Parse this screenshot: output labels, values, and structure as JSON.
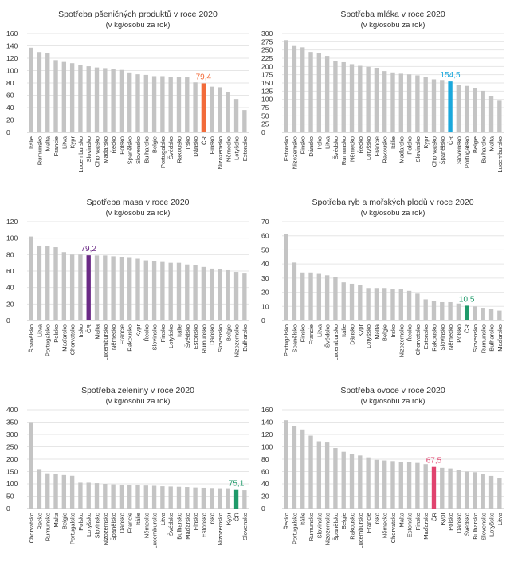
{
  "chart_data": [
    {
      "type": "bar",
      "title": "Spotřeba pšeničných produktů v roce 2020",
      "subtitle": "(v kg/osobu za rok)",
      "ylim": [
        0,
        160
      ],
      "yticks": [
        0,
        20,
        40,
        60,
        80,
        100,
        120,
        140,
        160
      ],
      "categories": [
        "Itálie",
        "Rumunsko",
        "Malta",
        "Francie",
        "Litva",
        "Kypr",
        "Lucembursko",
        "Slovinsko",
        "Chorvatsko",
        "Maďarsko",
        "Řecko",
        "Polsko",
        "Španělsko",
        "Slovensko",
        "Bulharsko",
        "Belgie",
        "Portugalsko",
        "Švédsko",
        "Rakousko",
        "Irsko",
        "Dánsko",
        "ČR",
        "Finsko",
        "Nizozemsko",
        "Německo",
        "Lotyšsko",
        "Estonsko"
      ],
      "values": [
        137,
        130,
        128,
        117,
        114,
        112,
        109,
        107,
        105,
        104,
        102,
        101,
        97,
        94,
        93,
        91,
        91,
        90,
        90,
        89,
        81,
        79.4,
        74,
        73,
        65,
        54,
        36
      ],
      "highlight": {
        "category": "ČR",
        "label": "79,4",
        "color": "#f26b3a"
      }
    },
    {
      "type": "bar",
      "title": "Spotřeba mléka v roce 2020",
      "subtitle": "(v kg/osobu za rok)",
      "ylim": [
        0,
        300
      ],
      "yticks": [
        0,
        25,
        50,
        75,
        100,
        125,
        150,
        175,
        200,
        225,
        250,
        275,
        300
      ],
      "categories": [
        "Estonsko",
        "Nizozemsko",
        "Finsko",
        "Dánsko",
        "Irsko",
        "Litva",
        "Švédsko",
        "Rumunsko",
        "Německo",
        "Řecko",
        "Lotyšsko",
        "Francie",
        "Rakousko",
        "Itálie",
        "Maďarsko",
        "Polsko",
        "Slovinsko",
        "Kypr",
        "Chorvatsko",
        "Španělsko",
        "ČR",
        "Slovensko",
        "Portugalsko",
        "Belgie",
        "Bulharsko",
        "Malta",
        "Lucembursko"
      ],
      "values": [
        280,
        262,
        258,
        244,
        240,
        232,
        216,
        213,
        207,
        202,
        199,
        196,
        186,
        182,
        178,
        176,
        173,
        168,
        161,
        159,
        154.5,
        145,
        141,
        134,
        126,
        110,
        96
      ],
      "highlight": {
        "category": "ČR",
        "label": "154,5",
        "color": "#1ba8dc"
      }
    },
    {
      "type": "bar",
      "title": "Spotřeba masa v roce 2020",
      "subtitle": "(v kg/osobu za rok)",
      "ylim": [
        0,
        120
      ],
      "yticks": [
        0,
        20,
        40,
        60,
        80,
        100,
        120
      ],
      "categories": [
        "Španělsko",
        "Litva",
        "Portugalsko",
        "Polsko",
        "Maďarsko",
        "Chorvatsko",
        "Irsko",
        "ČR",
        "Malta",
        "Lucembursko",
        "Německo",
        "Francie",
        "Rakousko",
        "Kypr",
        "Řecko",
        "Slovinsko",
        "Finsko",
        "Lotyšsko",
        "Itálie",
        "Švédsko",
        "Estonsko",
        "Rumunsko",
        "Dánsko",
        "Slovensko",
        "Belgie",
        "Nizozemsko",
        "Bulharsko"
      ],
      "values": [
        102,
        91,
        90,
        89,
        83,
        80,
        80,
        79.2,
        79,
        79,
        78,
        77,
        76,
        75,
        73,
        72,
        71,
        70,
        70,
        68,
        67,
        65,
        63,
        62,
        61,
        59,
        57
      ],
      "highlight": {
        "category": "ČR",
        "label": "79,2",
        "color": "#6b2a86"
      }
    },
    {
      "type": "bar",
      "title": "Spotřeba ryb a mořských plodů v roce 2020",
      "subtitle": "(v kg/osobu za rok)",
      "ylim": [
        0,
        70
      ],
      "yticks": [
        0,
        10,
        20,
        30,
        40,
        50,
        60,
        70
      ],
      "categories": [
        "Portugalsko",
        "Španělsko",
        "Finsko",
        "Francie",
        "Litva",
        "Švédsko",
        "Lucembursko",
        "Itálie",
        "Dánsko",
        "Kypr",
        "Lotyšsko",
        "Malta",
        "Belgie",
        "Irsko",
        "Nizozemsko",
        "Řecko",
        "Chorvatsko",
        "Estonsko",
        "Rakousko",
        "Slovinsko",
        "Německo",
        "Polsko",
        "ČR",
        "Slovensko",
        "Rumunsko",
        "Bulharsko",
        "Maďarsko"
      ],
      "values": [
        61,
        41,
        34,
        34,
        33,
        32,
        31,
        27,
        26,
        25,
        23,
        23,
        23,
        22,
        22,
        21,
        19,
        15,
        14,
        13,
        13,
        12,
        10.5,
        10,
        9,
        8,
        7
      ],
      "highlight": {
        "category": "ČR",
        "label": "10,5",
        "color": "#1f9a6a"
      }
    },
    {
      "type": "bar",
      "title": "Spotřeba zeleniny v roce 2020",
      "subtitle": "(v kg/osobu za rok)",
      "ylim": [
        0,
        400
      ],
      "yticks": [
        0,
        50,
        100,
        150,
        200,
        250,
        300,
        350,
        400
      ],
      "categories": [
        "Chorvatsko",
        "Řecko",
        "Rumunsko",
        "Malta",
        "Belgie",
        "Portugalsko",
        "Polsko",
        "Lotyšsko",
        "Slovinsko",
        "Nizozemsko",
        "Španělsko",
        "Dánsko",
        "Francie",
        "Itálie",
        "Německo",
        "Lucembursko",
        "Litva",
        "Švédsko",
        "Bulharsko",
        "Maďarsko",
        "Finsko",
        "Estonsko",
        "Irsko",
        "Nizozemsko",
        "Kypr",
        "ČR",
        "Slovensko"
      ],
      "values": [
        350,
        160,
        143,
        142,
        136,
        133,
        105,
        105,
        103,
        100,
        98,
        96,
        96,
        95,
        93,
        92,
        90,
        89,
        88,
        87,
        85,
        84,
        83,
        82,
        82,
        75.1,
        74
      ],
      "highlight": {
        "category": "ČR",
        "label": "75,1",
        "color": "#1f9a6a"
      }
    },
    {
      "type": "bar",
      "title": "Spotřeba ovoce v roce 2020",
      "subtitle": "(v kg/osobu za rok)",
      "ylim": [
        0,
        160
      ],
      "yticks": [
        0,
        20,
        40,
        60,
        80,
        100,
        120,
        140,
        160
      ],
      "categories": [
        "Řecko",
        "Portugalsko",
        "Itálie",
        "Rumunsko",
        "Slovinsko",
        "Nizozemsko",
        "Španělsko",
        "Belgie",
        "Rakousko",
        "Lucembursko",
        "Francie",
        "Irsko",
        "Německo",
        "Chorvatsko",
        "Malta",
        "Estonsko",
        "Finsko",
        "Maďarsko",
        "ČR",
        "Kypr",
        "Polsko",
        "Dánsko",
        "Švédsko",
        "Bulharsko",
        "Slovensko",
        "Lotyšsko",
        "Litva"
      ],
      "values": [
        143,
        133,
        128,
        118,
        109,
        107,
        98,
        92,
        89,
        86,
        83,
        79,
        78,
        77,
        76,
        75,
        74,
        72,
        67.5,
        66,
        65,
        62,
        60,
        59,
        56,
        53,
        49
      ],
      "highlight": {
        "category": "ČR",
        "label": "67,5",
        "color": "#e0436e"
      }
    }
  ],
  "colors": {
    "bar": "#c4c4c4",
    "grid": "#e6e6e6",
    "text": "#333333"
  }
}
